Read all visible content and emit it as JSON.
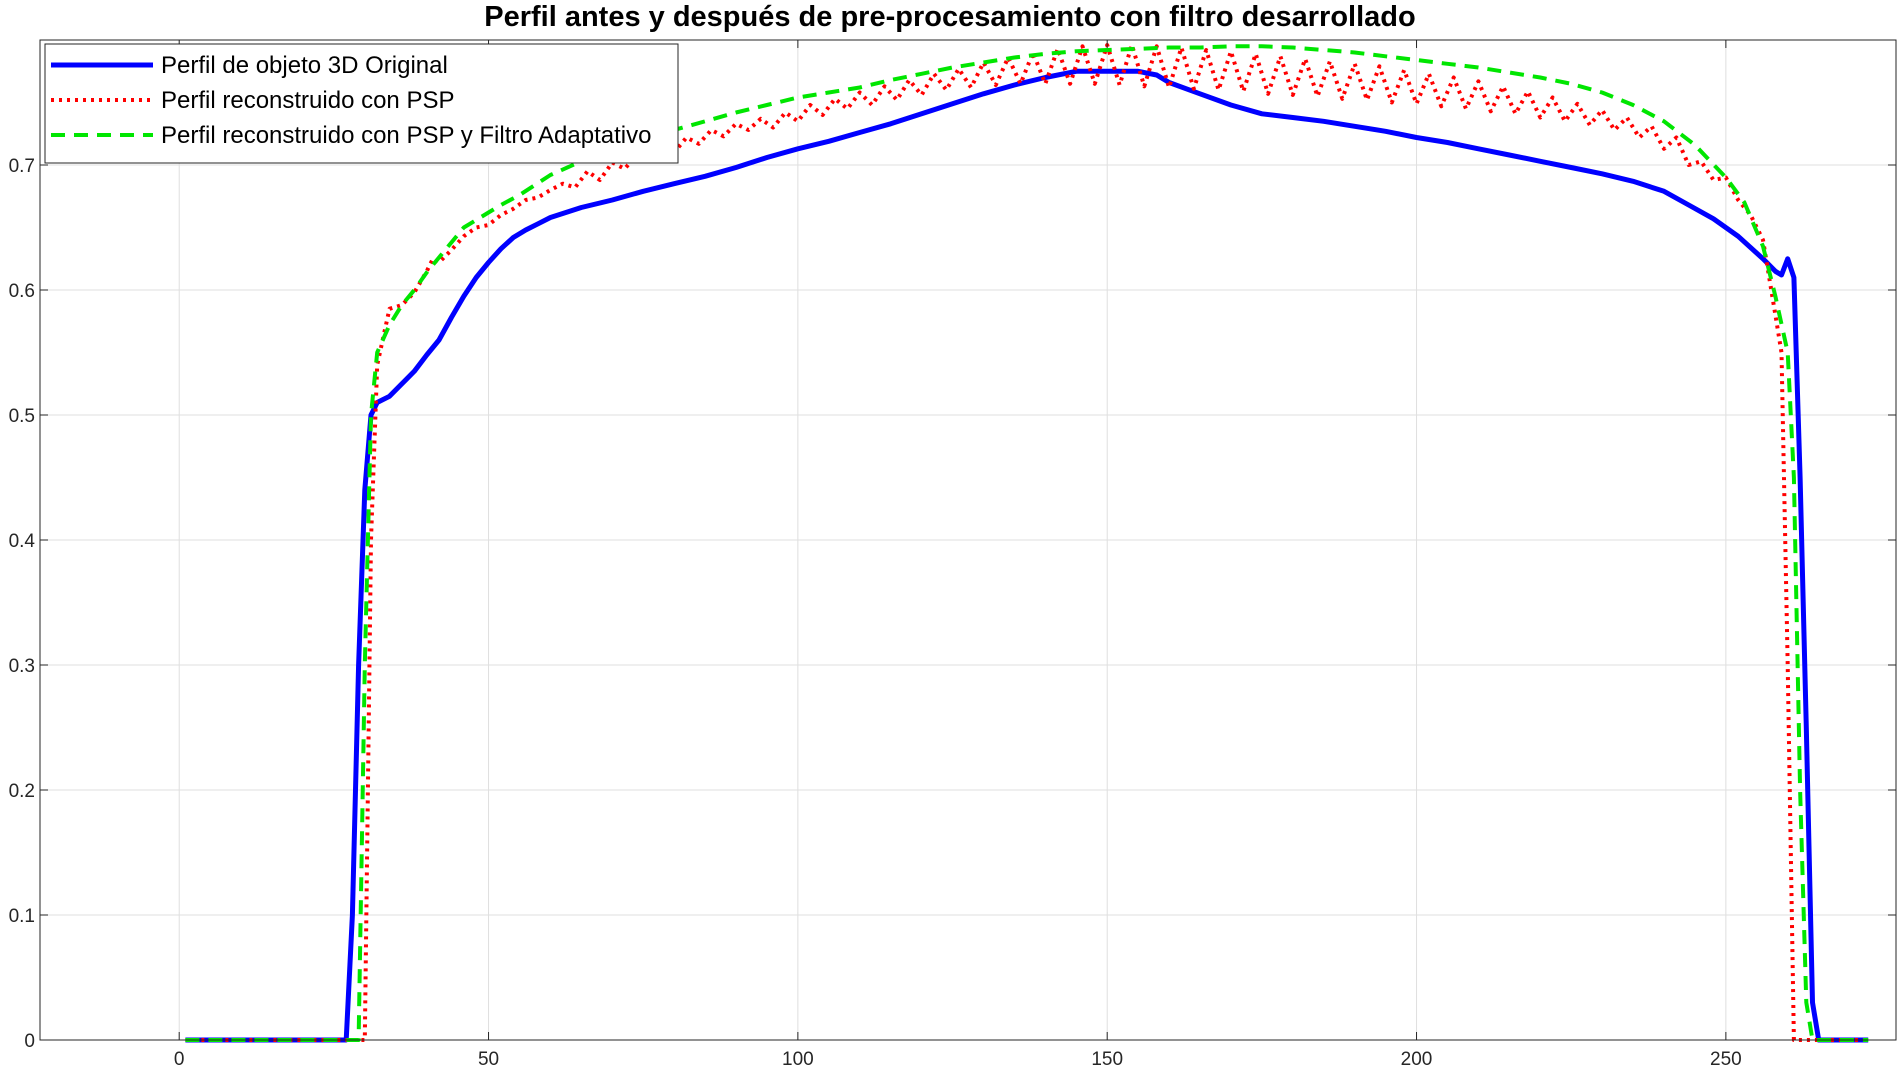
{
  "chart_data": {
    "type": "line",
    "title": "Perfil antes y después de pre-procesamiento con filtro desarrollado",
    "xlabel": "",
    "ylabel": "",
    "xlim": [
      -22.5,
      277.5
    ],
    "ylim": [
      0,
      0.8
    ],
    "xticks": [
      0,
      50,
      100,
      150,
      200,
      250
    ],
    "yticks": [
      0,
      0.1,
      0.2,
      0.3,
      0.4,
      0.5,
      0.6,
      0.7
    ],
    "xtick_labels": [
      "0",
      "50",
      "100",
      "150",
      "200",
      "250"
    ],
    "ytick_labels": [
      "0",
      "0.1",
      "0.2",
      "0.3",
      "0.4",
      "0.5",
      "0.6",
      "0.7"
    ],
    "grid": true,
    "legend_position": "top-left",
    "series": [
      {
        "name": "Perfil de objeto 3D Original",
        "color": "#0000ff",
        "style": "solid",
        "points": [
          [
            1,
            0
          ],
          [
            27,
            0
          ],
          [
            28,
            0.1
          ],
          [
            29,
            0.3
          ],
          [
            30,
            0.44
          ],
          [
            31,
            0.5
          ],
          [
            32,
            0.51
          ],
          [
            34,
            0.515
          ],
          [
            36,
            0.525
          ],
          [
            38,
            0.535
          ],
          [
            40,
            0.548
          ],
          [
            42,
            0.56
          ],
          [
            44,
            0.578
          ],
          [
            46,
            0.595
          ],
          [
            48,
            0.61
          ],
          [
            50,
            0.622
          ],
          [
            52,
            0.633
          ],
          [
            54,
            0.642
          ],
          [
            56,
            0.648
          ],
          [
            58,
            0.653
          ],
          [
            60,
            0.658
          ],
          [
            65,
            0.666
          ],
          [
            70,
            0.672
          ],
          [
            75,
            0.679
          ],
          [
            80,
            0.685
          ],
          [
            85,
            0.691
          ],
          [
            90,
            0.698
          ],
          [
            95,
            0.706
          ],
          [
            100,
            0.713
          ],
          [
            105,
            0.719
          ],
          [
            110,
            0.726
          ],
          [
            115,
            0.733
          ],
          [
            120,
            0.741
          ],
          [
            125,
            0.749
          ],
          [
            130,
            0.757
          ],
          [
            135,
            0.764
          ],
          [
            140,
            0.77
          ],
          [
            145,
            0.775
          ],
          [
            150,
            0.775
          ],
          [
            155,
            0.775
          ],
          [
            158,
            0.772
          ],
          [
            160,
            0.766
          ],
          [
            165,
            0.757
          ],
          [
            170,
            0.748
          ],
          [
            175,
            0.741
          ],
          [
            180,
            0.738
          ],
          [
            185,
            0.735
          ],
          [
            190,
            0.731
          ],
          [
            195,
            0.727
          ],
          [
            200,
            0.722
          ],
          [
            205,
            0.718
          ],
          [
            210,
            0.713
          ],
          [
            215,
            0.708
          ],
          [
            220,
            0.703
          ],
          [
            225,
            0.698
          ],
          [
            230,
            0.693
          ],
          [
            235,
            0.687
          ],
          [
            240,
            0.679
          ],
          [
            244,
            0.668
          ],
          [
            248,
            0.657
          ],
          [
            252,
            0.643
          ],
          [
            256,
            0.625
          ],
          [
            258,
            0.615
          ],
          [
            259,
            0.612
          ],
          [
            260,
            0.625
          ],
          [
            261,
            0.61
          ],
          [
            262,
            0.45
          ],
          [
            263,
            0.25
          ],
          [
            264,
            0.03
          ],
          [
            265,
            0
          ],
          [
            273,
            0
          ]
        ]
      },
      {
        "name": "Perfil reconstruido con PSP",
        "color": "#ff0000",
        "style": "dotted",
        "points": [
          [
            1,
            0
          ],
          [
            30,
            0
          ],
          [
            31,
            0.4
          ],
          [
            32,
            0.54
          ],
          [
            34,
            0.585
          ],
          [
            36,
            0.588
          ],
          [
            38,
            0.598
          ],
          [
            40,
            0.615
          ],
          [
            41,
            0.625
          ],
          [
            42,
            0.622
          ],
          [
            44,
            0.632
          ],
          [
            46,
            0.643
          ],
          [
            48,
            0.65
          ],
          [
            50,
            0.652
          ],
          [
            52,
            0.66
          ],
          [
            54,
            0.665
          ],
          [
            56,
            0.672
          ],
          [
            58,
            0.674
          ],
          [
            60,
            0.68
          ],
          [
            62,
            0.685
          ],
          [
            64,
            0.682
          ],
          [
            66,
            0.695
          ],
          [
            68,
            0.688
          ],
          [
            70,
            0.702
          ],
          [
            72,
            0.697
          ],
          [
            74,
            0.708
          ],
          [
            76,
            0.702
          ],
          [
            78,
            0.715
          ],
          [
            80,
            0.71
          ],
          [
            82,
            0.722
          ],
          [
            84,
            0.717
          ],
          [
            86,
            0.728
          ],
          [
            88,
            0.723
          ],
          [
            90,
            0.733
          ],
          [
            92,
            0.728
          ],
          [
            94,
            0.737
          ],
          [
            96,
            0.73
          ],
          [
            98,
            0.742
          ],
          [
            100,
            0.735
          ],
          [
            102,
            0.748
          ],
          [
            104,
            0.74
          ],
          [
            106,
            0.753
          ],
          [
            108,
            0.745
          ],
          [
            110,
            0.758
          ],
          [
            112,
            0.748
          ],
          [
            114,
            0.763
          ],
          [
            116,
            0.752
          ],
          [
            118,
            0.768
          ],
          [
            120,
            0.756
          ],
          [
            122,
            0.773
          ],
          [
            124,
            0.76
          ],
          [
            126,
            0.777
          ],
          [
            128,
            0.762
          ],
          [
            130,
            0.782
          ],
          [
            132,
            0.764
          ],
          [
            134,
            0.786
          ],
          [
            136,
            0.765
          ],
          [
            138,
            0.79
          ],
          [
            140,
            0.765
          ],
          [
            142,
            0.793
          ],
          [
            144,
            0.765
          ],
          [
            146,
            0.795
          ],
          [
            148,
            0.765
          ],
          [
            150,
            0.796
          ],
          [
            152,
            0.764
          ],
          [
            154,
            0.796
          ],
          [
            156,
            0.763
          ],
          [
            158,
            0.795
          ],
          [
            160,
            0.762
          ],
          [
            162,
            0.794
          ],
          [
            164,
            0.761
          ],
          [
            166,
            0.792
          ],
          [
            168,
            0.76
          ],
          [
            170,
            0.791
          ],
          [
            172,
            0.759
          ],
          [
            174,
            0.789
          ],
          [
            176,
            0.757
          ],
          [
            178,
            0.787
          ],
          [
            180,
            0.756
          ],
          [
            182,
            0.785
          ],
          [
            184,
            0.755
          ],
          [
            186,
            0.783
          ],
          [
            188,
            0.753
          ],
          [
            190,
            0.781
          ],
          [
            192,
            0.752
          ],
          [
            194,
            0.779
          ],
          [
            196,
            0.75
          ],
          [
            198,
            0.776
          ],
          [
            200,
            0.749
          ],
          [
            202,
            0.773
          ],
          [
            204,
            0.747
          ],
          [
            206,
            0.77
          ],
          [
            208,
            0.745
          ],
          [
            210,
            0.767
          ],
          [
            212,
            0.743
          ],
          [
            214,
            0.763
          ],
          [
            216,
            0.741
          ],
          [
            218,
            0.759
          ],
          [
            220,
            0.738
          ],
          [
            222,
            0.754
          ],
          [
            224,
            0.735
          ],
          [
            226,
            0.749
          ],
          [
            228,
            0.732
          ],
          [
            230,
            0.744
          ],
          [
            232,
            0.728
          ],
          [
            234,
            0.738
          ],
          [
            236,
            0.722
          ],
          [
            238,
            0.731
          ],
          [
            240,
            0.713
          ],
          [
            242,
            0.722
          ],
          [
            244,
            0.7
          ],
          [
            246,
            0.703
          ],
          [
            248,
            0.688
          ],
          [
            250,
            0.69
          ],
          [
            252,
            0.672
          ],
          [
            254,
            0.66
          ],
          [
            256,
            0.64
          ],
          [
            258,
            0.58
          ],
          [
            259,
            0.55
          ],
          [
            260,
            0.3
          ],
          [
            261,
            0
          ],
          [
            273,
            0
          ]
        ]
      },
      {
        "name": "Perfil reconstruido con PSP y Filtro Adaptativo",
        "color": "#00e600",
        "style": "dashed",
        "points": [
          [
            1,
            0
          ],
          [
            29,
            0
          ],
          [
            30,
            0.3
          ],
          [
            31,
            0.5
          ],
          [
            32,
            0.55
          ],
          [
            34,
            0.572
          ],
          [
            36,
            0.588
          ],
          [
            38,
            0.6
          ],
          [
            40,
            0.614
          ],
          [
            42,
            0.626
          ],
          [
            44,
            0.638
          ],
          [
            46,
            0.65
          ],
          [
            48,
            0.656
          ],
          [
            50,
            0.662
          ],
          [
            52,
            0.668
          ],
          [
            55,
            0.676
          ],
          [
            60,
            0.692
          ],
          [
            65,
            0.703
          ],
          [
            70,
            0.712
          ],
          [
            75,
            0.72
          ],
          [
            80,
            0.728
          ],
          [
            85,
            0.735
          ],
          [
            90,
            0.742
          ],
          [
            95,
            0.748
          ],
          [
            100,
            0.754
          ],
          [
            105,
            0.758
          ],
          [
            110,
            0.762
          ],
          [
            115,
            0.768
          ],
          [
            120,
            0.773
          ],
          [
            125,
            0.778
          ],
          [
            130,
            0.782
          ],
          [
            135,
            0.786
          ],
          [
            140,
            0.789
          ],
          [
            145,
            0.791
          ],
          [
            150,
            0.792
          ],
          [
            155,
            0.793
          ],
          [
            160,
            0.794
          ],
          [
            165,
            0.794
          ],
          [
            170,
            0.795
          ],
          [
            175,
            0.795
          ],
          [
            180,
            0.794
          ],
          [
            185,
            0.792
          ],
          [
            190,
            0.79
          ],
          [
            195,
            0.787
          ],
          [
            200,
            0.784
          ],
          [
            205,
            0.781
          ],
          [
            210,
            0.778
          ],
          [
            215,
            0.774
          ],
          [
            220,
            0.77
          ],
          [
            225,
            0.765
          ],
          [
            230,
            0.758
          ],
          [
            235,
            0.748
          ],
          [
            240,
            0.735
          ],
          [
            245,
            0.716
          ],
          [
            250,
            0.69
          ],
          [
            253,
            0.67
          ],
          [
            256,
            0.635
          ],
          [
            258,
            0.595
          ],
          [
            260,
            0.55
          ],
          [
            261,
            0.45
          ],
          [
            262,
            0.2
          ],
          [
            263,
            0.03
          ],
          [
            264,
            0
          ],
          [
            273,
            0
          ]
        ]
      }
    ]
  }
}
